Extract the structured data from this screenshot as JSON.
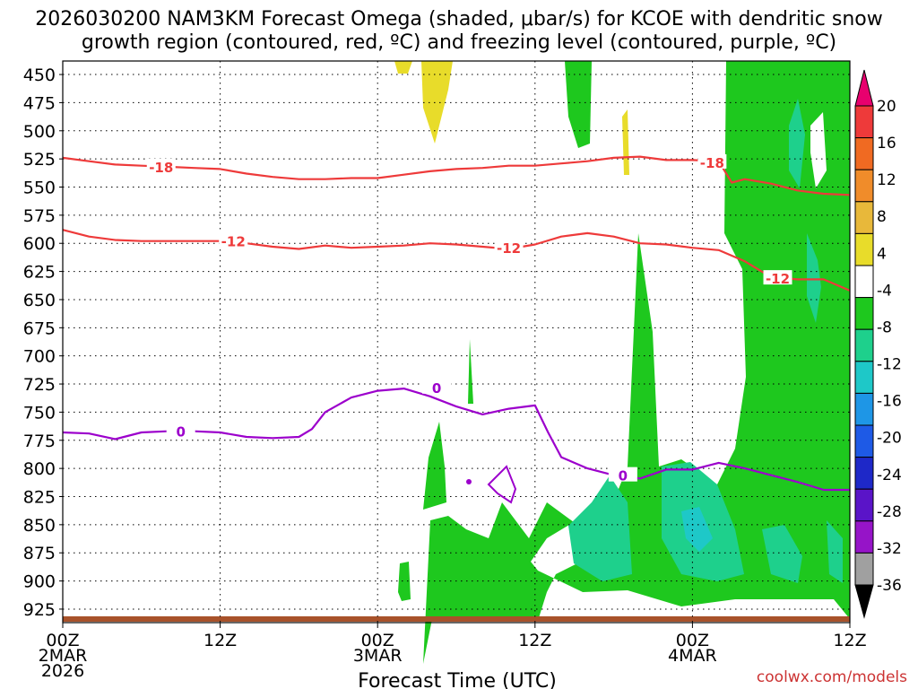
{
  "chart_data": {
    "type": "heatmap",
    "title_line1": "2026030200 NAM3KM Forecast Omega (shaded, μbar/s) for KCOE with dendritic snow",
    "title_line2": "growth region (contoured, red, ºC) and freezing level (contoured, purple, ºC)",
    "xlabel": "Forecast Time (UTC)",
    "ylabel": "",
    "x_ticks": [
      {
        "h": 0,
        "line1": "00Z",
        "line2": "2MAR",
        "line3": "2026"
      },
      {
        "h": 12,
        "line1": "12Z",
        "line2": "",
        "line3": ""
      },
      {
        "h": 24,
        "line1": "00Z",
        "line2": "3MAR",
        "line3": ""
      },
      {
        "h": 36,
        "line1": "12Z",
        "line2": "",
        "line3": ""
      },
      {
        "h": 48,
        "line1": "00Z",
        "line2": "4MAR",
        "line3": ""
      },
      {
        "h": 60,
        "line1": "12Z",
        "line2": "",
        "line3": ""
      }
    ],
    "xlim_hours": [
      0,
      60
    ],
    "y_axis_pressure_mb": [
      450,
      475,
      500,
      525,
      550,
      575,
      600,
      625,
      650,
      675,
      700,
      725,
      750,
      775,
      800,
      825,
      850,
      875,
      900,
      925
    ],
    "ylim_mb": [
      438,
      937
    ],
    "grid": true,
    "colorbar": {
      "labels": [
        "20",
        "16",
        "12",
        "8",
        "4",
        "-4",
        "-8",
        "-12",
        "-16",
        "-20",
        "-24",
        "-28",
        "-32",
        "-36"
      ],
      "colors": [
        "#e8006e",
        "#ee3a3a",
        "#f06a22",
        "#f08c2a",
        "#e8b83a",
        "#e8dc2a",
        "#ffffff",
        "#1ec81e",
        "#1ed08c",
        "#1ec8c8",
        "#1e96e6",
        "#1e5ae6",
        "#1e28c8",
        "#5a14c8",
        "#9614c8",
        "#a0a0a0",
        "#000000"
      ]
    },
    "contour_labels": {
      "dgz_upper": "-18",
      "dgz_lower": "-12",
      "freezing": "0"
    },
    "series": [
      {
        "name": "-18",
        "color": "#ee3a3a",
        "x": [
          0,
          2,
          4,
          6,
          8,
          10,
          12,
          14,
          16,
          18,
          20,
          22,
          24,
          26,
          28,
          30,
          32,
          34,
          36,
          38,
          40,
          42,
          44,
          46,
          48,
          50,
          51,
          52,
          54,
          56,
          58,
          60
        ],
        "y": [
          524,
          527,
          530,
          531,
          532,
          533,
          534,
          538,
          541,
          543,
          543,
          542,
          542,
          539,
          536,
          534,
          533,
          531,
          531,
          529,
          527,
          524,
          523,
          526,
          526,
          527,
          546,
          543,
          547,
          553,
          556,
          557
        ]
      },
      {
        "name": "-12",
        "color": "#ee3a3a",
        "x": [
          0,
          2,
          4,
          6,
          8,
          10,
          12,
          14,
          16,
          18,
          20,
          22,
          24,
          26,
          28,
          30,
          32,
          34,
          36,
          38,
          40,
          42,
          44,
          46,
          48,
          50,
          52,
          54,
          56,
          58,
          60
        ],
        "y": [
          588,
          594,
          597,
          598,
          598,
          598,
          598,
          600,
          603,
          605,
          602,
          604,
          603,
          602,
          600,
          601,
          603,
          605,
          601,
          594,
          591,
          594,
          600,
          601,
          604,
          606,
          616,
          630,
          632,
          632,
          642
        ]
      },
      {
        "name": "0",
        "color": "#9c00cc",
        "x": [
          0,
          2,
          4,
          6,
          8,
          10,
          12,
          14,
          16,
          18,
          19,
          20,
          22,
          24,
          26,
          28,
          30,
          32,
          34,
          36,
          37,
          38,
          40,
          42,
          44,
          46,
          48,
          50,
          52,
          54,
          56,
          58,
          60
        ],
        "y": [
          768,
          769,
          774,
          768,
          767,
          767,
          768,
          772,
          773,
          772,
          765,
          750,
          737,
          731,
          729,
          736,
          745,
          752,
          747,
          744,
          768,
          790,
          800,
          806,
          809,
          801,
          801,
          795,
          800,
          806,
          812,
          819,
          819
        ]
      }
    ]
  },
  "watermark": "coolwx.com/models"
}
